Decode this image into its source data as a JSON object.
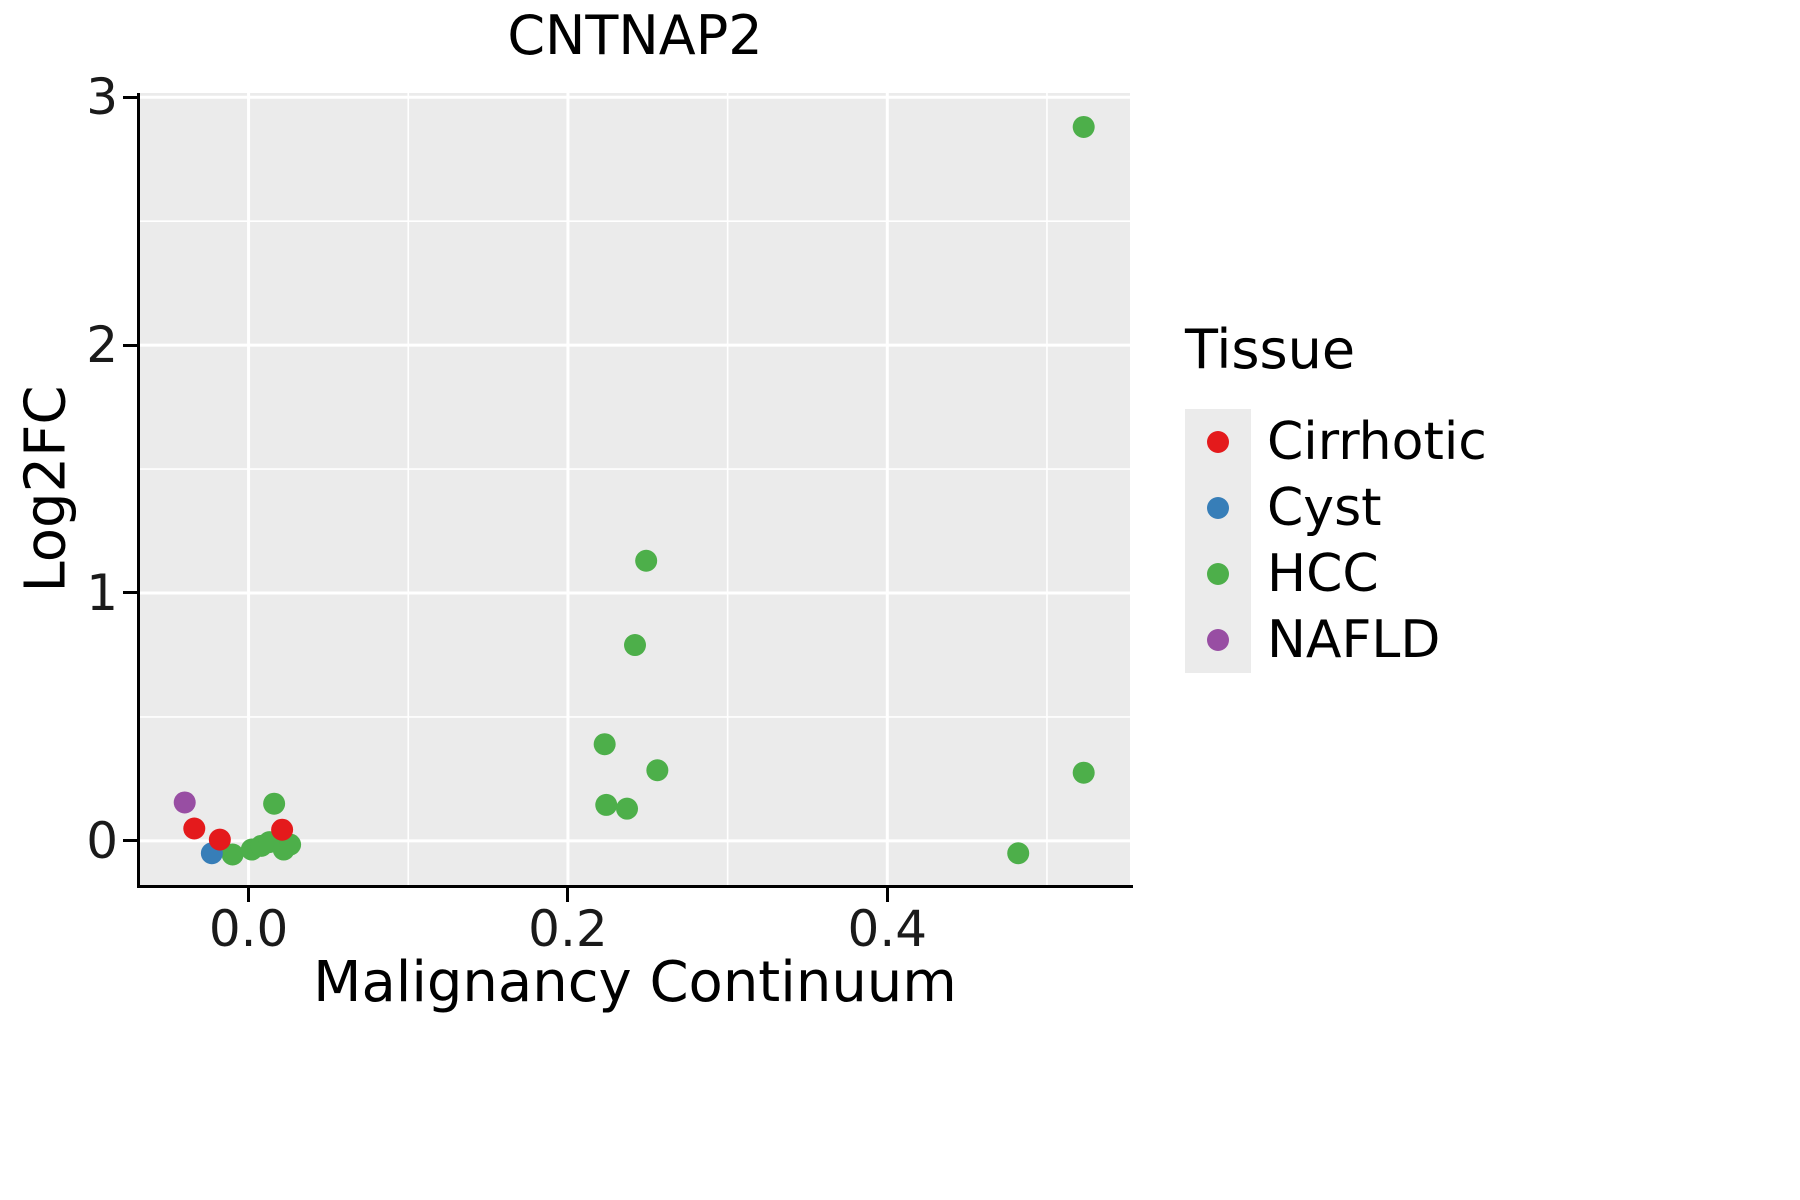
{
  "chart_data": {
    "type": "scatter",
    "title": "CNTNAP2",
    "xlabel": "Malignancy Continuum",
    "ylabel": "Log2FC",
    "legend_title": "Tissue",
    "xlim": [
      -0.068,
      0.552
    ],
    "ylim": [
      -0.178,
      3.017
    ],
    "xticks": [
      {
        "v": 0.0,
        "label": "0.0"
      },
      {
        "v": 0.2,
        "label": "0.2"
      },
      {
        "v": 0.4,
        "label": "0.4"
      }
    ],
    "yticks": [
      {
        "v": 0,
        "label": "0"
      },
      {
        "v": 1,
        "label": "1"
      },
      {
        "v": 2,
        "label": "2"
      },
      {
        "v": 3,
        "label": "3"
      }
    ],
    "x_minor": [
      0.1,
      0.3,
      0.5
    ],
    "y_minor": [
      0.5,
      1.5,
      2.5
    ],
    "panel_bg": "#ebebeb",
    "grid_color": "#ffffff",
    "legend_key_bg": "#ebebeb",
    "point_radius": 11,
    "series": [
      {
        "name": "Cirrhotic",
        "color": "#E41A1C",
        "points": [
          [
            -0.034,
            0.05
          ],
          [
            -0.018,
            0.005
          ],
          [
            0.021,
            0.045
          ]
        ]
      },
      {
        "name": "Cyst",
        "color": "#377EB8",
        "points": [
          [
            -0.023,
            -0.05
          ]
        ]
      },
      {
        "name": "HCC",
        "color": "#4DAF4A",
        "points": [
          [
            -0.01,
            -0.055
          ],
          [
            0.002,
            -0.035
          ],
          [
            0.008,
            -0.02
          ],
          [
            0.013,
            -0.005
          ],
          [
            0.016,
            0.15
          ],
          [
            0.022,
            -0.035
          ],
          [
            0.026,
            -0.015
          ],
          [
            0.223,
            0.39
          ],
          [
            0.224,
            0.145
          ],
          [
            0.237,
            0.13
          ],
          [
            0.242,
            0.79
          ],
          [
            0.249,
            1.13
          ],
          [
            0.256,
            0.285
          ],
          [
            0.482,
            -0.05
          ],
          [
            0.523,
            2.88
          ],
          [
            0.523,
            0.275
          ]
        ]
      },
      {
        "name": "NAFLD",
        "color": "#984EA3",
        "points": [
          [
            -0.04,
            0.155
          ]
        ]
      }
    ]
  }
}
